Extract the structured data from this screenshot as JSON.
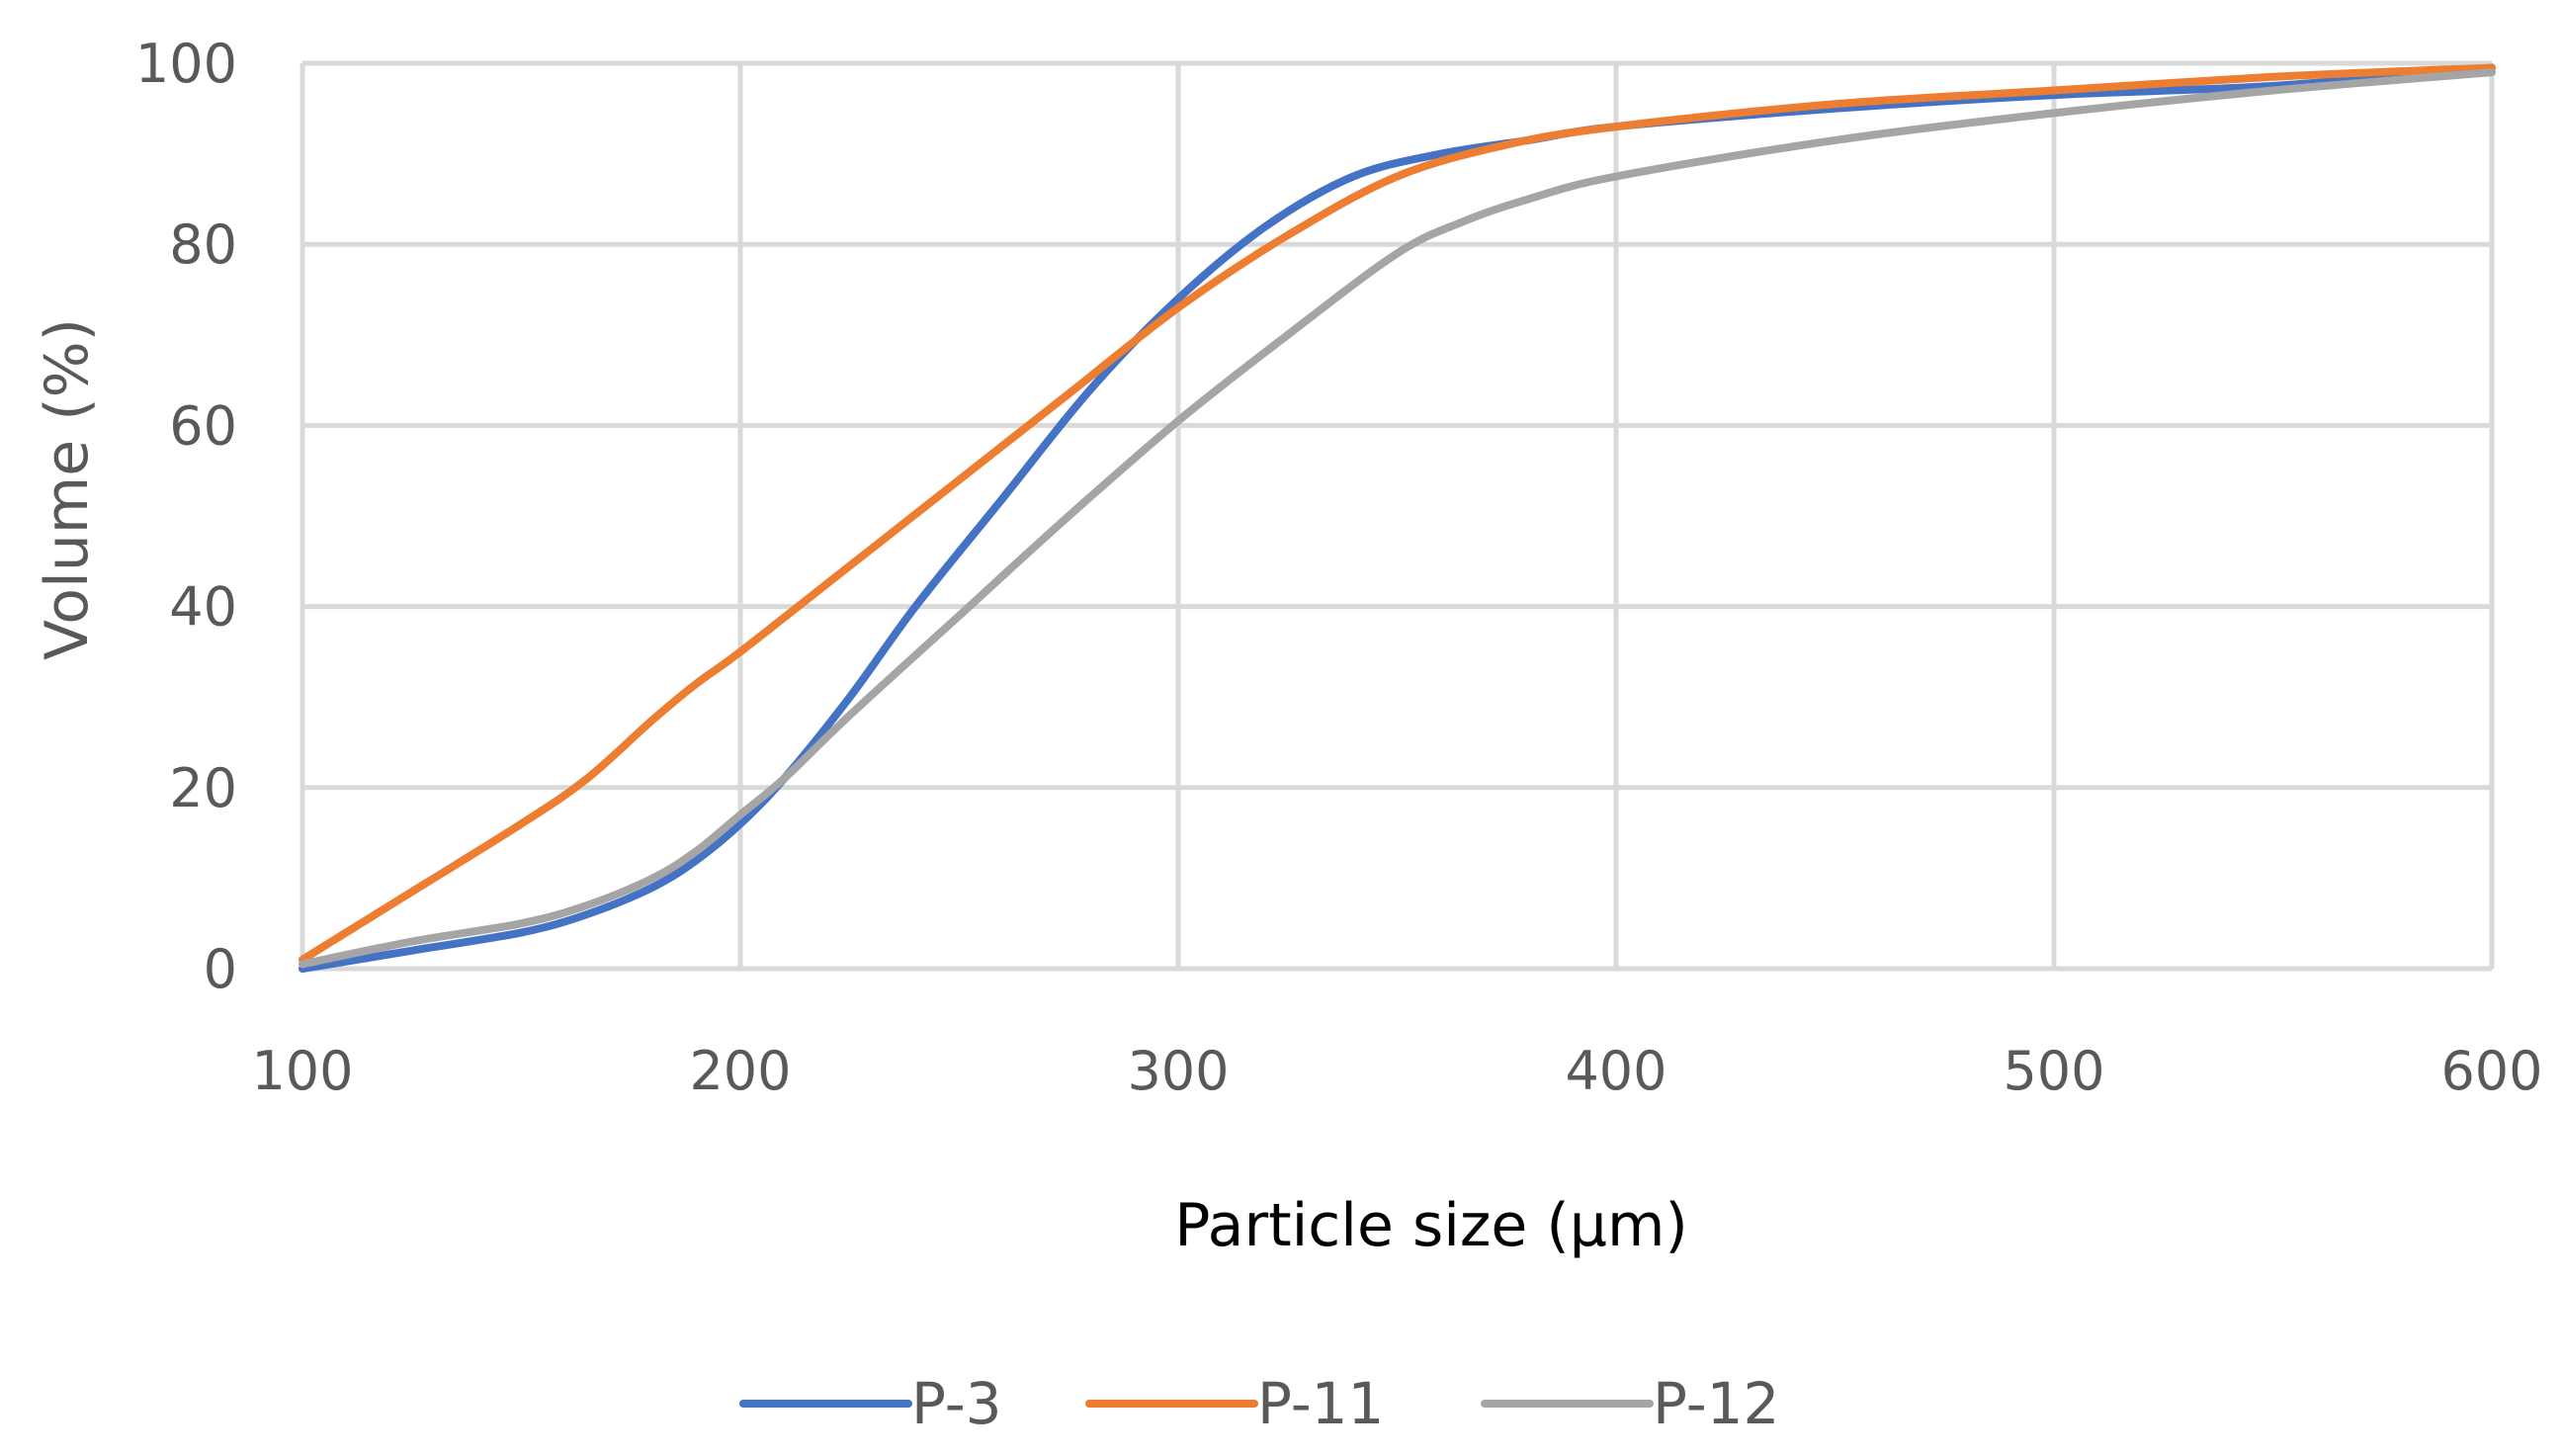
{
  "chart_data": {
    "type": "line",
    "title": "",
    "xlabel": "Particle size (μm)",
    "ylabel": "Volume (%)",
    "xlim": [
      100,
      600
    ],
    "ylim": [
      0,
      100
    ],
    "xticks": [
      100,
      200,
      300,
      400,
      500,
      600
    ],
    "yticks": [
      0,
      20,
      40,
      60,
      80,
      100
    ],
    "grid": true,
    "legend_position": "bottom-center",
    "series": [
      {
        "name": "P-3",
        "color": "#4472c4",
        "x": [
          100,
          125,
          150,
          165,
          180,
          190,
          200,
          210,
          225,
          240,
          260,
          280,
          300,
          320,
          340,
          360,
          380,
          400,
          450,
          500,
          550,
          600
        ],
        "y": [
          0,
          2,
          4,
          6,
          9,
          12,
          16,
          21,
          30,
          40,
          52,
          64,
          74,
          82,
          87.5,
          90,
          91.5,
          93,
          95,
          96.5,
          97.5,
          99.5
        ]
      },
      {
        "name": "P-11",
        "color": "#ed7d31",
        "x": [
          100,
          125,
          150,
          165,
          180,
          190,
          200,
          225,
          250,
          275,
          300,
          325,
          350,
          375,
          400,
          450,
          500,
          550,
          600
        ],
        "y": [
          1,
          8.5,
          16,
          21,
          27.5,
          31.5,
          35,
          44.5,
          54,
          63.5,
          73,
          81,
          87.5,
          91,
          93,
          95.5,
          97,
          98.5,
          99.5
        ]
      },
      {
        "name": "P-12",
        "color": "#a5a5a5",
        "x": [
          100,
          125,
          150,
          165,
          180,
          190,
          200,
          210,
          225,
          250,
          275,
          300,
          325,
          350,
          365,
          380,
          400,
          450,
          500,
          550,
          600
        ],
        "y": [
          0.5,
          3,
          5,
          7,
          10,
          13,
          17,
          21,
          28,
          39,
          50,
          60.5,
          70,
          79,
          82.5,
          85,
          87.5,
          91.5,
          94.5,
          97,
          99
        ]
      }
    ]
  }
}
